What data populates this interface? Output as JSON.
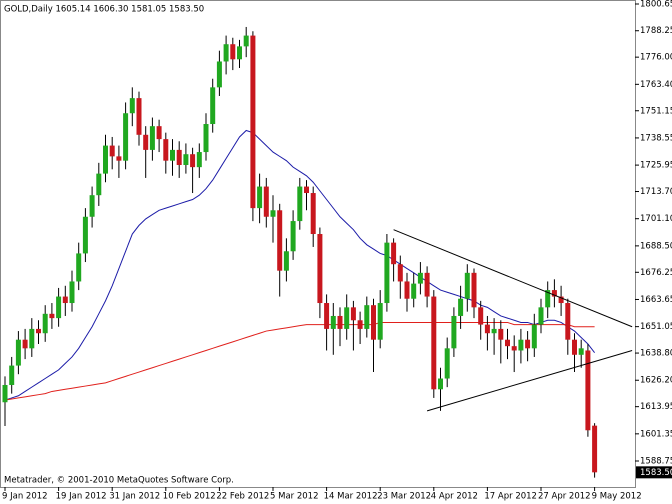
{
  "chart_data": {
    "type": "candlestick",
    "header": "GOLD,Daily  1605.14 1606.30 1581.05 1583.50",
    "footer": "Metatrader, © 2001-2010 MetaQuotes Software Corp.",
    "last_price": 1583.5,
    "last_price_label": "1583.50",
    "ylim": [
      1576.7,
      1802.5
    ],
    "yticks": [
      1800.65,
      1788.25,
      {
        "value": 1776.0,
        "label": "1776.00"
      },
      {
        "value": 1763.4,
        "label": "1763.40"
      },
      1751.15,
      1738.55,
      1725.95,
      {
        "value": 1713.7,
        "label": "1713.70"
      },
      {
        "value": 1701.1,
        "label": "1701.10"
      },
      {
        "value": 1688.5,
        "label": "1688.50"
      },
      1676.25,
      1663.65,
      1651.05,
      {
        "value": 1638.8,
        "label": "1638.80"
      },
      {
        "value": 1626.2,
        "label": "1626.20"
      },
      1613.95,
      1601.35,
      1588.75
    ],
    "categories": [
      "9 Jan 2012",
      null,
      null,
      null,
      null,
      null,
      null,
      null,
      "19 Jan 2012",
      null,
      null,
      null,
      null,
      null,
      null,
      null,
      "31 Jan 2012",
      null,
      null,
      null,
      null,
      null,
      null,
      null,
      "10 Feb 2012",
      null,
      null,
      null,
      null,
      null,
      null,
      null,
      "22 Feb 2012",
      null,
      null,
      null,
      null,
      null,
      null,
      null,
      "5 Mar 2012",
      null,
      null,
      null,
      null,
      null,
      null,
      null,
      "14 Mar 2012",
      null,
      null,
      null,
      null,
      null,
      null,
      null,
      "23 Mar 2012",
      null,
      null,
      null,
      null,
      null,
      null,
      null,
      "4 Apr 2012",
      null,
      null,
      null,
      null,
      null,
      null,
      null,
      "17 Apr 2012",
      null,
      null,
      null,
      null,
      null,
      null,
      null,
      "27 Apr 2012",
      null,
      null,
      null,
      null,
      null,
      null,
      null,
      "9 May 2012"
    ],
    "up_color": "#20a820",
    "down_color": "#c8171e",
    "open": [
      1616,
      1624,
      1633,
      1645,
      1641,
      1650,
      1648,
      1657,
      1655,
      1665,
      1662,
      1672,
      1685,
      1702,
      1712,
      1722,
      1735,
      1730,
      1728,
      1750,
      1757,
      1740,
      1733,
      1744,
      1738,
      1728,
      1733,
      1726,
      1731,
      1725,
      1732,
      1745,
      1762,
      1774,
      1782,
      1775,
      1781,
      1786,
      1706,
      1716,
      1702,
      1705,
      1677,
      1686,
      1700,
      1716,
      1713,
      1694,
      1662,
      1650,
      1656,
      1650,
      1660,
      1654,
      1650,
      1661,
      1645,
      1662,
      1690,
      1680,
      1672,
      1664,
      1671,
      1676,
      1665,
      1622,
      1627,
      1641,
      1656,
      1664,
      1676,
      1660,
      1652,
      1648,
      1650,
      1645,
      1642,
      1640,
      1645,
      1641,
      1652,
      1660,
      1668,
      1665,
      1662,
      1645,
      1638,
      1640,
      1605.14
    ],
    "high": [
      1628,
      1637,
      1649,
      1650,
      1655,
      1654,
      1661,
      1662,
      1669,
      1670,
      1677,
      1690,
      1706,
      1716,
      1727,
      1740,
      1739,
      1735,
      1755,
      1762,
      1760,
      1744,
      1748,
      1747,
      1741,
      1738,
      1737,
      1736,
      1734,
      1736,
      1750,
      1766,
      1779,
      1786,
      1785,
      1784,
      1790,
      1788,
      1722,
      1720,
      1712,
      1708,
      1692,
      1705,
      1720,
      1719,
      1716,
      1697,
      1666,
      1662,
      1660,
      1666,
      1663,
      1658,
      1665,
      1664,
      1668,
      1694,
      1692,
      1684,
      1676,
      1676,
      1681,
      1679,
      1668,
      1632,
      1646,
      1660,
      1670,
      1680,
      1678,
      1663,
      1656,
      1655,
      1654,
      1650,
      1647,
      1650,
      1649,
      1657,
      1664,
      1672,
      1673,
      1670,
      1664,
      1648,
      1645,
      1643,
      1606.3
    ],
    "low": [
      1605,
      1620,
      1629,
      1636,
      1637,
      1643,
      1644,
      1650,
      1651,
      1656,
      1658,
      1668,
      1681,
      1697,
      1707,
      1718,
      1724,
      1720,
      1724,
      1744,
      1735,
      1720,
      1728,
      1732,
      1722,
      1721,
      1720,
      1722,
      1713,
      1720,
      1728,
      1741,
      1758,
      1768,
      1770,
      1771,
      1776,
      1700,
      1699,
      1697,
      1690,
      1665,
      1672,
      1682,
      1696,
      1705,
      1688,
      1655,
      1640,
      1638,
      1642,
      1645,
      1640,
      1643,
      1646,
      1630,
      1641,
      1658,
      1672,
      1664,
      1658,
      1660,
      1666,
      1660,
      1618,
      1612,
      1623,
      1637,
      1650,
      1658,
      1655,
      1645,
      1640,
      1638,
      1634,
      1636,
      1630,
      1634,
      1635,
      1637,
      1648,
      1655,
      1660,
      1656,
      1638,
      1630,
      1632,
      1600,
      1581.05
    ],
    "close": [
      1624,
      1633,
      1645,
      1641,
      1650,
      1648,
      1657,
      1655,
      1665,
      1662,
      1672,
      1685,
      1702,
      1712,
      1722,
      1735,
      1730,
      1728,
      1750,
      1757,
      1740,
      1733,
      1744,
      1738,
      1728,
      1733,
      1726,
      1731,
      1725,
      1732,
      1745,
      1762,
      1774,
      1782,
      1775,
      1781,
      1786,
      1706,
      1716,
      1702,
      1705,
      1677,
      1686,
      1700,
      1716,
      1713,
      1694,
      1662,
      1650,
      1656,
      1650,
      1660,
      1654,
      1650,
      1661,
      1645,
      1662,
      1690,
      1680,
      1672,
      1664,
      1671,
      1676,
      1665,
      1622,
      1627,
      1641,
      1656,
      1664,
      1676,
      1660,
      1652,
      1648,
      1650,
      1645,
      1642,
      1640,
      1645,
      1641,
      1652,
      1660,
      1668,
      1665,
      1662,
      1645,
      1638,
      1641,
      1603,
      1583.5
    ],
    "ma_lines": [
      {
        "color": "#1c1ca8",
        "values": [
          1617,
          1618,
          1619,
          1621,
          1623,
          1625,
          1627,
          1629,
          1631,
          1634,
          1637,
          1641,
          1646,
          1651,
          1657,
          1663,
          1670,
          1678,
          1686,
          1694,
          1698,
          1701,
          1703,
          1705,
          1706,
          1707,
          1708,
          1709,
          1710,
          1712,
          1715,
          1719,
          1724,
          1729,
          1734,
          1739,
          1742,
          1741,
          1738,
          1735,
          1732,
          1730,
          1728,
          1725,
          1723,
          1721,
          1718,
          1714,
          1710,
          1706,
          1702,
          1699,
          1696,
          1692,
          1689,
          1687,
          1685,
          1684,
          1682,
          1680,
          1678,
          1676,
          1674,
          1672,
          1670,
          1668,
          1667,
          1666,
          1665,
          1664,
          1663,
          1661,
          1660,
          1658,
          1656,
          1655,
          1654,
          1653,
          1653,
          1652,
          1653,
          1654,
          1654,
          1653,
          1651,
          1649,
          1646,
          1643,
          1639
        ]
      },
      {
        "color": "#e0201c",
        "values": [
          1617,
          1617.5,
          1618,
          1618.5,
          1619,
          1619.5,
          1620,
          1621,
          1621.5,
          1622,
          1622.5,
          1623,
          1623.5,
          1624,
          1624.5,
          1625,
          1626,
          1627,
          1628,
          1629,
          1630,
          1631,
          1632,
          1633,
          1634,
          1635,
          1636,
          1637,
          1638,
          1639,
          1640,
          1641,
          1642,
          1643,
          1644,
          1645,
          1646,
          1647,
          1648,
          1649,
          1649.5,
          1650,
          1650.5,
          1651,
          1651.5,
          1652,
          1652,
          1652,
          1652,
          1652,
          1652,
          1652,
          1652,
          1652,
          1652,
          1652,
          1653,
          1653,
          1653,
          1653,
          1653,
          1653,
          1653,
          1653,
          1653,
          1653,
          1653,
          1653,
          1653,
          1653,
          1653,
          1653,
          1653,
          1653,
          1653,
          1653,
          1652,
          1652,
          1652,
          1652,
          1652,
          1652,
          1652,
          1652,
          1652,
          1651,
          1651,
          1651,
          1651
        ]
      }
    ],
    "trendlines": [
      {
        "x": [
          58,
          93.6
        ],
        "y": [
          1696,
          1651
        ]
      },
      {
        "x": [
          63,
          93.6
        ],
        "y": [
          1612,
          1640
        ]
      }
    ]
  }
}
